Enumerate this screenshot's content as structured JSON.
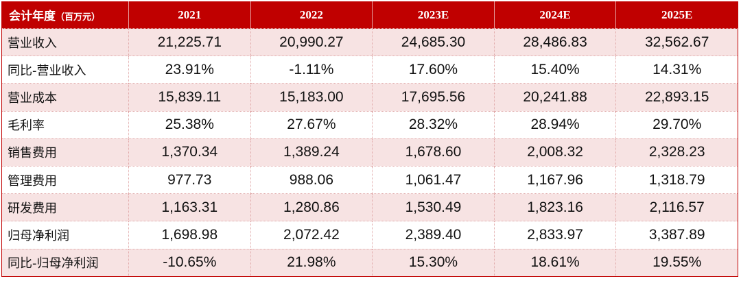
{
  "table": {
    "header": {
      "label": "会计年度",
      "unit": "（百万元）",
      "columns": [
        "2021",
        "2022",
        "2023E",
        "2024E",
        "2025E"
      ]
    },
    "rows": [
      [
        "营业收入",
        "21,225.71",
        "20,990.27",
        "24,685.30",
        "28,486.83",
        "32,562.67"
      ],
      [
        "同比-营业收入",
        "23.91%",
        "-1.11%",
        "17.60%",
        "15.40%",
        "14.31%"
      ],
      [
        "营业成本",
        "15,839.11",
        "15,183.00",
        "17,695.56",
        "20,241.88",
        "22,893.15"
      ],
      [
        "毛利率",
        "25.38%",
        "27.67%",
        "28.32%",
        "28.94%",
        "29.70%"
      ],
      [
        "销售费用",
        "1,370.34",
        "1,389.24",
        "1,678.60",
        "2,008.32",
        "2,328.23"
      ],
      [
        "管理费用",
        "977.73",
        "988.06",
        "1,061.47",
        "1,167.96",
        "1,318.79"
      ],
      [
        "研发费用",
        "1,163.31",
        "1,280.86",
        "1,530.49",
        "1,823.16",
        "2,116.57"
      ],
      [
        "归母净利润",
        "1,698.98",
        "2,072.42",
        "2,389.40",
        "2,833.97",
        "3,387.89"
      ],
      [
        "同比-归母净利润",
        "-10.65%",
        "21.98%",
        "15.30%",
        "18.61%",
        "19.55%"
      ]
    ]
  }
}
